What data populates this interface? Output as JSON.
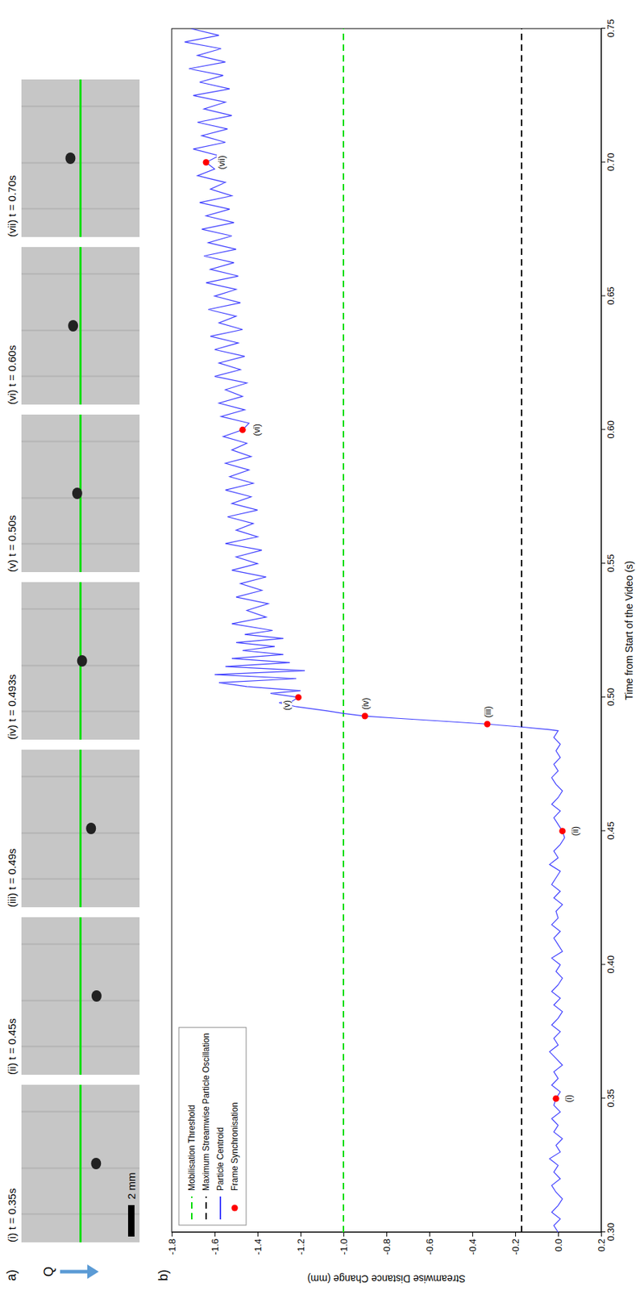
{
  "chart_data": {
    "type": "line",
    "panel_labels": [
      "a)",
      "b)"
    ],
    "flow_label": "Q",
    "scale_bar_label": "2 mm",
    "x_label": "Time from Start of the Video (s)",
    "y_label": "Streamwise Distance Change (mm)",
    "xlim": [
      0.3,
      0.75
    ],
    "xticks": [
      {
        "value": 0.3,
        "label": "0.30"
      },
      0.35,
      {
        "value": 0.4,
        "label": "0.40"
      },
      0.45,
      {
        "value": 0.5,
        "label": "0.50"
      },
      0.55,
      {
        "value": 0.6,
        "label": "0.60"
      },
      0.65,
      {
        "value": 0.7,
        "label": "0.70"
      },
      0.75
    ],
    "ylim": [
      0.2,
      -1.8
    ],
    "yticks": [
      0.2,
      {
        "value": 0,
        "label": "0.0"
      },
      -0.2,
      -0.4,
      -0.6,
      -0.8,
      {
        "value": -1,
        "label": "-1.0"
      },
      -1.2,
      -1.4,
      -1.6,
      -1.8
    ],
    "grid": false,
    "legend": "upper left",
    "thresholds": [
      {
        "name": "Mobilisation Threshold",
        "value": -1,
        "color": "#00dd00",
        "line_style": "dashed"
      },
      {
        "name": "Maximum Streamwise Particle Oscillation",
        "value": -0.17,
        "color": "#000000",
        "line_style": "dashed"
      }
    ],
    "series": [
      {
        "name": "Particle Centroid",
        "color": "#3c3cff",
        "line_style": "solid",
        "x": [
          0.3,
          0.3025,
          0.305,
          0.3075,
          0.31,
          0.3125,
          0.315,
          0.3175,
          0.32,
          0.3225,
          0.325,
          0.3275,
          0.33,
          0.3325,
          0.335,
          0.3375,
          0.34,
          0.3425,
          0.345,
          0.3475,
          0.35,
          0.3525,
          0.355,
          0.3575,
          0.36,
          0.3625,
          0.365,
          0.3675,
          0.37,
          0.3725,
          0.375,
          0.3775,
          0.38,
          0.3825,
          0.385,
          0.3875,
          0.39,
          0.3925,
          0.395,
          0.3975,
          0.4,
          0.4025,
          0.405,
          0.4075,
          0.41,
          0.4125,
          0.415,
          0.4175,
          0.42,
          0.4225,
          0.425,
          0.4275,
          0.43,
          0.4325,
          0.435,
          0.4375,
          0.44,
          0.4425,
          0.445,
          0.4475,
          0.45,
          0.4525,
          0.455,
          0.4575,
          0.46,
          0.4625,
          0.465,
          0.4675,
          0.47,
          0.4725,
          0.475,
          0.4775,
          0.48,
          0.4825,
          0.485,
          0.4875,
          0.488,
          0.489,
          0.49,
          0.491,
          0.492,
          0.493,
          0.494,
          0.495,
          0.4965,
          0.498,
          0.4985,
          0.5,
          0.5015,
          0.5025,
          0.504,
          0.5055,
          0.507,
          0.5085,
          0.51,
          0.5115,
          0.513,
          0.5145,
          0.516,
          0.5175,
          0.519,
          0.5205,
          0.522,
          0.5235,
          0.525,
          0.5275,
          0.53,
          0.5325,
          0.535,
          0.5375,
          0.54,
          0.5425,
          0.545,
          0.5475,
          0.55,
          0.5525,
          0.555,
          0.5575,
          0.56,
          0.5625,
          0.565,
          0.5675,
          0.57,
          0.5725,
          0.575,
          0.5775,
          0.58,
          0.5825,
          0.585,
          0.5875,
          0.59,
          0.5925,
          0.595,
          0.5975,
          0.6,
          0.6025,
          0.605,
          0.6075,
          0.61,
          0.6125,
          0.615,
          0.6175,
          0.62,
          0.6225,
          0.625,
          0.6275,
          0.63,
          0.6325,
          0.635,
          0.6375,
          0.64,
          0.6425,
          0.645,
          0.6475,
          0.65,
          0.6525,
          0.655,
          0.6575,
          0.66,
          0.6625,
          0.665,
          0.6675,
          0.67,
          0.6725,
          0.675,
          0.6775,
          0.68,
          0.6825,
          0.685,
          0.6875,
          0.69,
          0.6925,
          0.695,
          0.6975,
          0.7,
          0.7025,
          0.705,
          0.7075,
          0.71,
          0.7125,
          0.715,
          0.7175,
          0.72,
          0.7225,
          0.725,
          0.7275,
          0.73,
          0.7325,
          0.735,
          0.7375,
          0.74,
          0.7425,
          0.745,
          0.7475,
          0.75
        ],
        "values": [
          0,
          -0.02,
          0.01,
          -0.03,
          0,
          0.02,
          -0.01,
          -0.03,
          0.01,
          -0.02,
          0,
          -0.04,
          0.01,
          -0.01,
          0.02,
          -0.02,
          0,
          -0.03,
          0.01,
          -0.02,
          -0.01,
          0.01,
          -0.03,
          0,
          -0.02,
          0.02,
          -0.01,
          -0.04,
          0,
          -0.02,
          0.01,
          -0.03,
          0,
          0.02,
          -0.02,
          0.01,
          -0.03,
          0,
          0.02,
          -0.01,
          0.01,
          -0.03,
          0.02,
          0,
          -0.02,
          0.01,
          -0.03,
          0,
          -0.01,
          0.02,
          -0.02,
          0.01,
          -0.03,
          -0.01,
          0.01,
          -0.04,
          0,
          -0.02,
          0.01,
          0.03,
          0.02,
          0,
          -0.02,
          0.01,
          -0.03,
          0,
          0.02,
          -0.01,
          -0.03,
          0,
          -0.02,
          0.01,
          -0.01,
          0.01,
          -0.02,
          0,
          -0.05,
          -0.18,
          -0.33,
          -0.52,
          -0.72,
          -0.9,
          -1,
          -1.08,
          -1.22,
          -1.3,
          -1.24,
          -1.21,
          -1.34,
          -1.2,
          -1.45,
          -1.58,
          -1.22,
          -1.6,
          -1.18,
          -1.55,
          -1.25,
          -1.52,
          -1.28,
          -1.47,
          -1.32,
          -1.5,
          -1.28,
          -1.46,
          -1.33,
          -1.52,
          -1.36,
          -1.45,
          -1.35,
          -1.5,
          -1.38,
          -1.48,
          -1.36,
          -1.52,
          -1.4,
          -1.5,
          -1.38,
          -1.55,
          -1.4,
          -1.5,
          -1.42,
          -1.54,
          -1.4,
          -1.52,
          -1.43,
          -1.55,
          -1.42,
          -1.53,
          -1.44,
          -1.55,
          -1.43,
          -1.52,
          -1.45,
          -1.56,
          -1.47,
          -1.44,
          -1.57,
          -1.46,
          -1.58,
          -1.47,
          -1.55,
          -1.45,
          -1.6,
          -1.48,
          -1.58,
          -1.46,
          -1.6,
          -1.49,
          -1.62,
          -1.47,
          -1.58,
          -1.5,
          -1.63,
          -1.48,
          -1.6,
          -1.5,
          -1.64,
          -1.49,
          -1.62,
          -1.51,
          -1.65,
          -1.5,
          -1.63,
          -1.52,
          -1.66,
          -1.51,
          -1.64,
          -1.53,
          -1.67,
          -1.52,
          -1.62,
          -1.55,
          -1.68,
          -1.6,
          -1.64,
          -1.58,
          -1.7,
          -1.55,
          -1.66,
          -1.54,
          -1.68,
          -1.52,
          -1.65,
          -1.55,
          -1.7,
          -1.53,
          -1.67,
          -1.56,
          -1.72,
          -1.55,
          -1.68,
          -1.57,
          -1.74,
          -1.58,
          -1.71
        ]
      }
    ],
    "markers": {
      "name": "Frame Synchronisation",
      "color": "#ff0000",
      "marker": "circle"
    },
    "frames": [
      {
        "label": "(i) t = 0.35s",
        "marker_label": "(i)",
        "t": 0.35,
        "value": -0.01
      },
      {
        "label": "(ii) t = 0.45s",
        "marker_label": "(ii)",
        "t": 0.45,
        "value": 0.02
      },
      {
        "label": "(iii) t = 0.49s",
        "marker_label": "(iii)",
        "t": 0.49,
        "value": -0.33
      },
      {
        "label": "(iv) t = 0.493s",
        "marker_label": "(iv)",
        "t": 0.493,
        "value": -0.9
      },
      {
        "label": "(v) t = 0.50s",
        "marker_label": "(v)",
        "t": 0.5,
        "value": -1.21
      },
      {
        "label": "(vi) t = 0.60s",
        "marker_label": "(vi)",
        "t": 0.6,
        "value": -1.47
      },
      {
        "label": "(vii) t = 0.70s",
        "marker_label": "(vii)",
        "t": 0.7,
        "value": -1.64
      }
    ]
  }
}
